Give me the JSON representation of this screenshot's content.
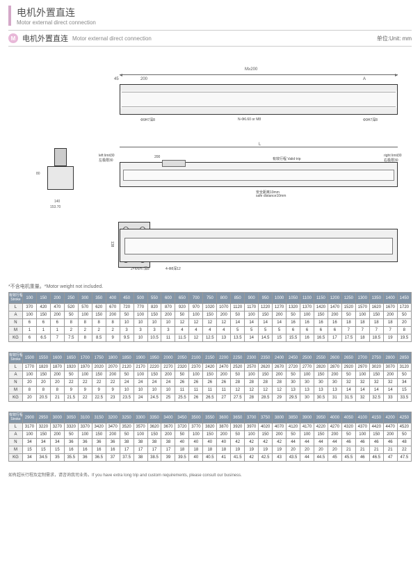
{
  "title": {
    "cn": "电机外置直连",
    "en": "Motor external direct connection"
  },
  "section": {
    "badge": "M",
    "cn": "电机外置直连",
    "en": "Motor external direct connection",
    "unit": "单位:Unit: mm"
  },
  "diagram_labels": {
    "top_span": "M≥200",
    "top_left_dim": "45",
    "top_200": "200",
    "top_A": "A",
    "hole_left": "Φ9H7深8",
    "hole_mid": "N-Φ6.60 or M8",
    "hole_right": "Φ9H7深8",
    "side_L": "L",
    "left_limit": "left limit30",
    "left_limit_cn": "左极限30",
    "right_limit": "right limit30",
    "right_limit_cn": "右极限30",
    "valid_trip": "有效行程 Valid trip",
    "safe_dist": "安全距离10mm",
    "safe_dist_en": "safe distance10mm",
    "side_200": "200",
    "motor_h": "80",
    "motor_w": "140",
    "motor_w2": "153.70",
    "bottom_h": "138",
    "bottom_hole_l": "2×Φ6H7深8",
    "bottom_hole_r": "4-Φ8深12"
  },
  "note_top": "*不含电机重量。*Motor weight not included.",
  "row_labels": [
    "L",
    "A",
    "N",
    "M",
    "KG"
  ],
  "stroke_header": {
    "cn": "有效行程",
    "en": "Stroke"
  },
  "table1": {
    "strokes": [
      100,
      150,
      200,
      250,
      300,
      350,
      400,
      450,
      500,
      550,
      600,
      650,
      700,
      750,
      800,
      850,
      900,
      950,
      1000,
      1050,
      1100,
      1150,
      1200,
      1250,
      1300,
      1350,
      1400,
      1450
    ],
    "L": [
      370,
      420,
      470,
      520,
      570,
      620,
      670,
      720,
      770,
      820,
      870,
      920,
      970,
      1020,
      1070,
      1120,
      1170,
      1220,
      1270,
      1320,
      1370,
      1420,
      1470,
      1520,
      1570,
      1620,
      1670,
      1720
    ],
    "A": [
      100,
      150,
      200,
      50,
      100,
      150,
      200,
      50,
      100,
      150,
      200,
      50,
      100,
      150,
      200,
      50,
      100,
      150,
      200,
      50,
      100,
      150,
      200,
      50,
      100,
      150,
      200,
      50
    ],
    "N": [
      6,
      6,
      6,
      8,
      8,
      8,
      8,
      10,
      10,
      10,
      10,
      12,
      12,
      12,
      12,
      14,
      14,
      14,
      14,
      16,
      16,
      16,
      16,
      18,
      18,
      18,
      18,
      20
    ],
    "M": [
      1,
      1,
      1,
      2,
      2,
      2,
      2,
      3,
      3,
      3,
      3,
      4,
      4,
      4,
      4,
      5,
      5,
      5,
      5,
      6,
      6,
      6,
      6,
      7,
      7,
      7,
      7,
      8
    ],
    "KG": [
      6,
      6.5,
      7,
      7.5,
      8,
      8.5,
      9,
      9.5,
      10,
      10.5,
      11,
      11.5,
      12,
      12.5,
      13,
      13.5,
      14,
      14.5,
      15,
      15.5,
      16,
      16.5,
      17,
      17.5,
      18,
      18.5,
      19,
      19.5
    ]
  },
  "table2": {
    "strokes": [
      1500,
      1550,
      1600,
      1650,
      1700,
      1750,
      1800,
      1850,
      1900,
      1950,
      2000,
      2050,
      2100,
      2150,
      2200,
      2250,
      2300,
      2350,
      2400,
      2450,
      2500,
      2550,
      2600,
      2650,
      2700,
      2750,
      2800,
      2850
    ],
    "L": [
      1770,
      1820,
      1870,
      1920,
      1970,
      2020,
      2070,
      2120,
      2170,
      2220,
      2270,
      2320,
      2370,
      2420,
      2470,
      2520,
      2570,
      2620,
      2670,
      2720,
      2770,
      2820,
      2870,
      2920,
      2970,
      3020,
      3070,
      3120
    ],
    "A": [
      100,
      150,
      200,
      50,
      100,
      150,
      200,
      50,
      100,
      150,
      200,
      50,
      100,
      150,
      200,
      50,
      100,
      150,
      200,
      50,
      100,
      150,
      200,
      50,
      100,
      150,
      200,
      50
    ],
    "N": [
      20,
      20,
      20,
      22,
      22,
      22,
      22,
      24,
      24,
      24,
      24,
      26,
      26,
      26,
      26,
      28,
      28,
      28,
      28,
      30,
      30,
      30,
      30,
      32,
      32,
      32,
      32,
      34
    ],
    "M": [
      8,
      8,
      8,
      9,
      9,
      9,
      9,
      10,
      10,
      10,
      10,
      11,
      11,
      11,
      11,
      12,
      12,
      12,
      12,
      13,
      13,
      13,
      13,
      14,
      14,
      14,
      14,
      15
    ],
    "KG": [
      20,
      20.5,
      21,
      21.5,
      22,
      22.5,
      23,
      23.5,
      24,
      24.5,
      25,
      25.5,
      26,
      26.5,
      27,
      27.5,
      28,
      28.5,
      29,
      29.5,
      30,
      30.5,
      31,
      31.5,
      32,
      32.5,
      33,
      33.5
    ]
  },
  "table3": {
    "strokes": [
      2900,
      2950,
      3000,
      3050,
      3100,
      3150,
      3200,
      3250,
      3300,
      3350,
      3400,
      3450,
      3500,
      3550,
      3600,
      3650,
      3700,
      3750,
      3800,
      3850,
      3900,
      3950,
      4000,
      4050,
      4100,
      4150,
      4200,
      4250
    ],
    "L": [
      3170,
      3220,
      3270,
      3320,
      3370,
      3420,
      3470,
      3520,
      3570,
      3620,
      3670,
      3720,
      3770,
      3820,
      3870,
      3920,
      3970,
      4020,
      4070,
      4120,
      4170,
      4220,
      4270,
      4320,
      4370,
      4420,
      4470,
      4520
    ],
    "A": [
      100,
      150,
      200,
      50,
      100,
      150,
      200,
      50,
      100,
      150,
      200,
      50,
      100,
      150,
      200,
      50,
      100,
      150,
      200,
      50,
      100,
      150,
      200,
      50,
      100,
      150,
      200,
      50
    ],
    "N": [
      34,
      34,
      34,
      36,
      36,
      36,
      36,
      38,
      38,
      38,
      38,
      40,
      40,
      40,
      40,
      42,
      42,
      42,
      42,
      44,
      44,
      44,
      44,
      46,
      46,
      46,
      46,
      48
    ],
    "M": [
      15,
      15,
      15,
      16,
      16,
      16,
      16,
      17,
      17,
      17,
      17,
      18,
      18,
      18,
      18,
      19,
      19,
      19,
      19,
      20,
      20,
      20,
      20,
      21,
      21,
      21,
      21,
      22
    ],
    "KG": [
      34,
      34.5,
      35,
      35.5,
      36,
      36.5,
      37,
      37.5,
      38,
      38.5,
      39,
      39.5,
      40,
      40.5,
      41,
      41.5,
      42,
      42.5,
      43,
      43.5,
      44,
      44.5,
      45,
      45.5,
      46,
      46.5,
      47,
      47.5
    ]
  },
  "footnote": "如有超长行程及定制需求，请咨询我司业务。If you have extra long trip and custom requirements, please consult our business.",
  "colors": {
    "accent": "#d4a8c8",
    "table_header_bg": "#8395a7",
    "border": "#999"
  }
}
